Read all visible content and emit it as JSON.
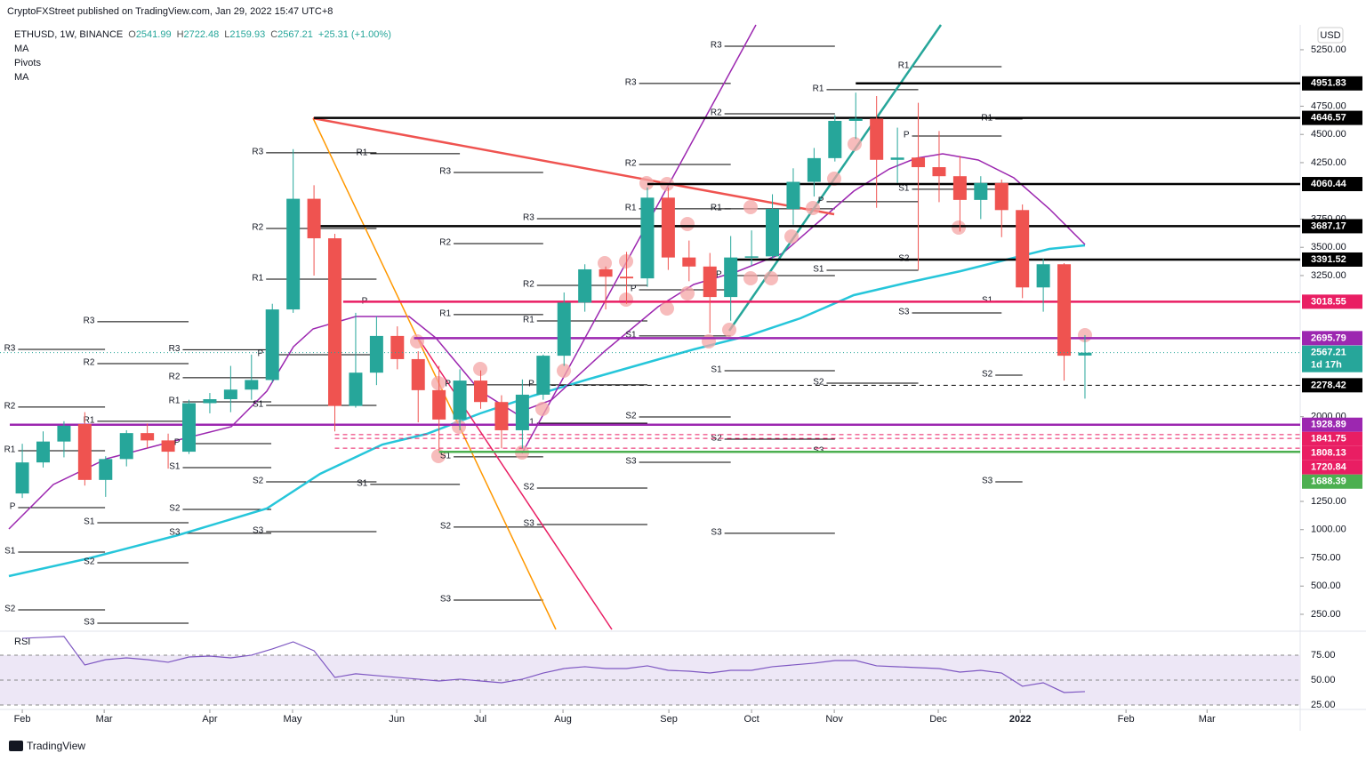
{
  "header": {
    "attribution": "CryptoFXStreet published on TradingView.com, Jan 29, 2022 15:47 UTC+8",
    "symbol": "ETHUSD, 1W, BINANCE",
    "ohlc": [
      {
        "label": "O",
        "value": 2541.99
      },
      {
        "label": "H",
        "value": 2722.48
      },
      {
        "label": "L",
        "value": 2159.93
      },
      {
        "label": "C",
        "value": 2567.21
      }
    ],
    "change": "+25.31 (+1.00%)",
    "indicators": [
      "MA",
      "Pivots",
      "MA"
    ],
    "currency": "USD"
  },
  "chart_data": {
    "type": "candlestick",
    "up_color": "#26a69a",
    "down_color": "#ef5350",
    "open": [
      1320,
      1595,
      1780,
      1935,
      1440,
      1625,
      1855,
      1790,
      1690,
      2120,
      2155,
      2240,
      2325,
      2950,
      3930,
      3580,
      2095,
      2390,
      2715,
      2510,
      2235,
      1975,
      2320,
      2130,
      1880,
      2195,
      2540,
      3010,
      3305,
      3240,
      3225,
      3940,
      3410,
      3330,
      3060,
      3410,
      3420,
      3840,
      4080,
      4290,
      4620,
      4640,
      4275,
      4295,
      4210,
      4130,
      3920,
      4070,
      3830,
      3145,
      3350,
      2541.99
    ],
    "high": [
      1760,
      1870,
      1960,
      2040,
      1650,
      1880,
      1940,
      1850,
      2150,
      2210,
      2450,
      2550,
      3000,
      4370,
      4050,
      3620,
      2920,
      2890,
      2800,
      2580,
      2450,
      2420,
      2410,
      2190,
      2330,
      2550,
      3100,
      3350,
      3330,
      3460,
      4030,
      4030,
      3560,
      3450,
      3600,
      3650,
      3970,
      4200,
      4380,
      4670,
      4870,
      4840,
      4560,
      4780,
      4530,
      4310,
      4130,
      4100,
      3880,
      3400,
      3360,
      2722.48
    ],
    "low": [
      1280,
      1550,
      1640,
      1390,
      1290,
      1560,
      1720,
      1540,
      1670,
      2030,
      2040,
      2150,
      2300,
      2920,
      3250,
      1870,
      2080,
      2280,
      2420,
      1950,
      1700,
      1880,
      2070,
      1720,
      1720,
      2150,
      2450,
      2930,
      2950,
      3000,
      3150,
      3300,
      3200,
      2740,
      2850,
      3340,
      3400,
      3700,
      3950,
      4260,
      4460,
      3850,
      4070,
      3300,
      3900,
      3640,
      3750,
      3590,
      3050,
      2930,
      2320,
      2159.93
    ],
    "close": [
      1595,
      1780,
      1920,
      1440,
      1625,
      1855,
      1790,
      1690,
      2120,
      2155,
      2240,
      2325,
      2950,
      3930,
      3580,
      2095,
      2390,
      2715,
      2510,
      2235,
      1975,
      2320,
      2130,
      1880,
      2195,
      2540,
      3010,
      3305,
      3240,
      3225,
      3940,
      3410,
      3330,
      3060,
      3410,
      3420,
      3840,
      4080,
      4290,
      4620,
      4640,
      4275,
      4295,
      4210,
      4130,
      3920,
      4070,
      3830,
      3145,
      3350,
      2540,
      2567.21
    ],
    "countdown": "1d 17h",
    "current_color": "#26a69a",
    "xlim": [
      -1.07,
      61.33
    ],
    "xticks": [
      {
        "value": 0,
        "label": "Feb"
      },
      {
        "value": 3.93,
        "label": "Mar"
      },
      {
        "value": 9.0,
        "label": "Apr"
      },
      {
        "value": 12.97,
        "label": "May"
      },
      {
        "value": 17.97,
        "label": "Jun"
      },
      {
        "value": 21.98,
        "label": "Jul"
      },
      {
        "value": 25.95,
        "label": "Aug"
      },
      {
        "value": 31.03,
        "label": "Sep"
      },
      {
        "value": 35.0,
        "label": "Oct"
      },
      {
        "value": 38.97,
        "label": "Nov"
      },
      {
        "value": 43.96,
        "label": "Dec"
      },
      {
        "value": 47.89,
        "label": "2022"
      },
      {
        "value": 52.97,
        "label": "Feb"
      },
      {
        "value": 56.86,
        "label": "Mar"
      }
    ],
    "ylim": [
      116,
      5470
    ],
    "yticks": [
      {
        "value": 250,
        "label": "250.00"
      },
      {
        "value": 500,
        "label": "500.00"
      },
      {
        "value": 750,
        "label": "750.00"
      },
      {
        "value": 1000,
        "label": "1000.00"
      },
      {
        "value": 1250,
        "label": "1250.00"
      },
      {
        "value": 2000,
        "label": "2000.00"
      },
      {
        "value": 3250,
        "label": "3250.00"
      },
      {
        "value": 3500,
        "label": "3500.00"
      },
      {
        "value": 3750,
        "label": "3750.00"
      },
      {
        "value": 4250,
        "label": "4250.00"
      },
      {
        "value": 4500,
        "label": "4500.00"
      },
      {
        "value": 4750,
        "label": "4750.00"
      },
      {
        "value": 5250,
        "label": "5250.00"
      }
    ],
    "levels": [
      {
        "value": 4951.83,
        "color": "#000000",
        "from": 40
      },
      {
        "value": 4646.57,
        "color": "#000000",
        "from": 14
      },
      {
        "value": 4060.44,
        "color": "#000000",
        "from": 30
      },
      {
        "value": 3687.17,
        "color": "#000000",
        "from": 14
      },
      {
        "value": 3391.52,
        "color": "#000000",
        "from": 34
      },
      {
        "value": 3018.55,
        "color": "#e91e63",
        "from": 15.4
      },
      {
        "value": 2695.79,
        "color": "#9c27b0",
        "from": 18.8
      },
      {
        "value": 2278.42,
        "color": "#000000",
        "from": 25,
        "dashed": true
      },
      {
        "value": 1928.89,
        "color": "#9c27b0",
        "from": -0.6
      },
      {
        "value": 1841.75,
        "color": "#e91e63",
        "from": 15,
        "dashed": true
      },
      {
        "value": 1808.13,
        "color": "#e91e63",
        "from": 15,
        "dashed": true
      },
      {
        "value": 1720.84,
        "color": "#e91e63",
        "from": 15,
        "dashed": true
      },
      {
        "value": 1688.39,
        "color": "#4caf50",
        "from": 20
      }
    ],
    "pivots": [
      {
        "from": -0.2,
        "to": 3.97,
        "levels": [
          {
            "label": "R3",
            "value": 2596
          },
          {
            "label": "R2",
            "value": 2085
          },
          {
            "label": "R1",
            "value": 1699
          },
          {
            "label": "P",
            "value": 1195
          },
          {
            "label": "S1",
            "value": 801
          },
          {
            "label": "S2",
            "value": 289
          }
        ]
      },
      {
        "from": 3.6,
        "to": 7.98,
        "levels": [
          {
            "label": "R3",
            "value": 2841
          },
          {
            "label": "R2",
            "value": 2470
          },
          {
            "label": "R1",
            "value": 1959
          },
          {
            "label": "S1",
            "value": 1061
          },
          {
            "label": "S2",
            "value": 707
          },
          {
            "label": "S3",
            "value": 171
          }
        ]
      },
      {
        "from": 7.7,
        "to": 11.95,
        "levels": [
          {
            "label": "R3",
            "value": 2593
          },
          {
            "label": "R2",
            "value": 2345
          },
          {
            "label": "R1",
            "value": 2132
          },
          {
            "label": "P",
            "value": 1762
          },
          {
            "label": "S1",
            "value": 1549
          },
          {
            "label": "S2",
            "value": 1179
          },
          {
            "label": "S3",
            "value": 967
          }
        ]
      },
      {
        "from": 11.7,
        "to": 17,
        "levels": [
          {
            "label": "R3",
            "value": 4337
          },
          {
            "label": "R2",
            "value": 3667
          },
          {
            "label": "R1",
            "value": 3218
          },
          {
            "label": "P",
            "value": 2549
          },
          {
            "label": "S1",
            "value": 2100
          },
          {
            "label": "S2",
            "value": 1423
          },
          {
            "label": "S3",
            "value": 982
          }
        ]
      },
      {
        "from": 16.7,
        "to": 21,
        "levels": [
          {
            "label": "R1",
            "value": 4329
          },
          {
            "label": "P",
            "value": 3014
          },
          {
            "label": "S1",
            "value": 1400
          }
        ]
      },
      {
        "from": 20.7,
        "to": 25,
        "levels": [
          {
            "label": "R3",
            "value": 4163
          },
          {
            "label": "R2",
            "value": 3533
          },
          {
            "label": "R1",
            "value": 2904
          },
          {
            "label": "P",
            "value": 2282
          },
          {
            "label": "S1",
            "value": 1644
          },
          {
            "label": "S2",
            "value": 1022
          },
          {
            "label": "S3",
            "value": 376
          }
        ]
      },
      {
        "from": 24.7,
        "to": 30,
        "levels": [
          {
            "label": "R3",
            "value": 3754
          },
          {
            "label": "R2",
            "value": 3163
          },
          {
            "label": "R1",
            "value": 2848
          },
          {
            "label": "P",
            "value": 2282
          },
          {
            "label": "S1",
            "value": 1943
          },
          {
            "label": "S2",
            "value": 1368
          },
          {
            "label": "S3",
            "value": 1045
          }
        ]
      },
      {
        "from": 29.6,
        "to": 34,
        "levels": [
          {
            "label": "R3",
            "value": 4951
          },
          {
            "label": "R2",
            "value": 4234
          },
          {
            "label": "R1",
            "value": 3841
          },
          {
            "label": "P",
            "value": 3124
          },
          {
            "label": "S1",
            "value": 2715
          },
          {
            "label": "S2",
            "value": 1998
          },
          {
            "label": "S3",
            "value": 1596
          }
        ]
      },
      {
        "from": 33.7,
        "to": 39,
        "levels": [
          {
            "label": "R3",
            "value": 5281
          },
          {
            "label": "R2",
            "value": 4683
          },
          {
            "label": "R1",
            "value": 3841
          },
          {
            "label": "P",
            "value": 3250
          },
          {
            "label": "S1",
            "value": 2407
          },
          {
            "label": "S2",
            "value": 1801
          },
          {
            "label": "S3",
            "value": 967
          }
        ]
      },
      {
        "from": 38.6,
        "to": 43,
        "levels": [
          {
            "label": "R1",
            "value": 4896
          },
          {
            "label": "P",
            "value": 3904
          },
          {
            "label": "S1",
            "value": 3297
          },
          {
            "label": "S2",
            "value": 2297
          },
          {
            "label": "S3",
            "value": 1691
          }
        ]
      },
      {
        "from": 42.7,
        "to": 47,
        "levels": [
          {
            "label": "R1",
            "value": 5100
          },
          {
            "label": "P",
            "value": 4486
          },
          {
            "label": "S1",
            "value": 4014
          },
          {
            "label": "S2",
            "value": 3392
          },
          {
            "label": "S3",
            "value": 2919
          }
        ]
      },
      {
        "from": 46.7,
        "to": 48,
        "levels": [
          {
            "label": "R1",
            "value": 4636
          },
          {
            "label": "S1",
            "value": 3022
          },
          {
            "label": "S2",
            "value": 2368
          },
          {
            "label": "S3",
            "value": 1423
          }
        ]
      }
    ],
    "rsi": {
      "title": "RSI",
      "color": "#7e57c2",
      "band_color": "#ede7f6",
      "values": [
        92.0,
        92.9,
        93.8,
        65.2,
        70.5,
        72.3,
        70.5,
        67.9,
        73.2,
        74.1,
        72.3,
        75.0,
        81.3,
        88.4,
        79.5,
        52.7,
        56.3,
        54.5,
        52.7,
        50.9,
        49.1,
        50.9,
        49.1,
        47.3,
        50.9,
        57.1,
        61.6,
        63.4,
        61.6,
        61.6,
        64.3,
        59.8,
        58.9,
        57.1,
        59.8,
        59.8,
        63.4,
        65.2,
        67.0,
        69.6,
        69.6,
        64.3,
        63.4,
        62.5,
        61.6,
        58.0,
        59.8,
        57.1,
        43.8,
        47.3,
        37.5,
        38.4
      ],
      "ylim": [
        21.4,
        97.3
      ],
      "yticks": [
        {
          "value": 75,
          "label": "75.00"
        },
        {
          "value": 50,
          "label": "50.00"
        },
        {
          "value": 25,
          "label": "25.00"
        }
      ]
    }
  },
  "footer": {
    "logo": "TradingView"
  }
}
